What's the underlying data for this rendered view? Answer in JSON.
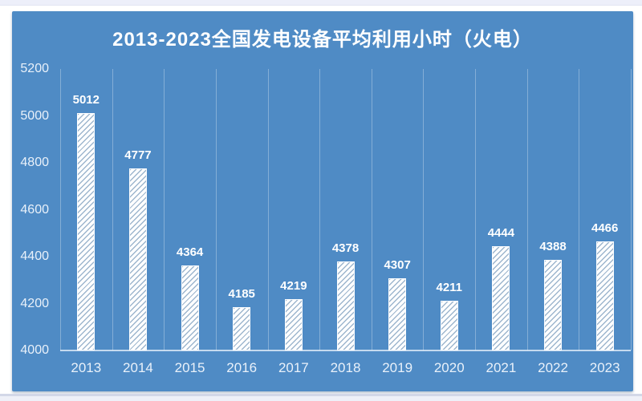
{
  "chart": {
    "title": "2013-2023全国发电设备平均利用小时（火电）",
    "colors": {
      "panel_bg": "#4f8bc5",
      "text_bright": "#ffffff",
      "text_soft": "#e9f1fa",
      "grid": "rgba(255,255,255,0.30)",
      "axis": "rgba(236,244,252,0.75)",
      "bar_fill": "#ffffff",
      "bar_stripe": "#9db6ce"
    }
  },
  "chart_data": {
    "type": "bar",
    "title": "2013-2023全国发电设备平均利用小时（火电）",
    "categories": [
      "2013",
      "2014",
      "2015",
      "2016",
      "2017",
      "2018",
      "2019",
      "2020",
      "2021",
      "2022",
      "2023"
    ],
    "values": [
      5012,
      4777,
      4364,
      4185,
      4219,
      4378,
      4307,
      4211,
      4444,
      4388,
      4466
    ],
    "xlabel": "",
    "ylabel": "",
    "ylim": [
      4000,
      5200
    ],
    "yticks": [
      4000,
      4200,
      4400,
      4600,
      4800,
      5000,
      5200
    ],
    "grid": "vertical-only",
    "data_labels": "outside-end",
    "legend": "none",
    "bar_style": "white-diagonal-hatch"
  }
}
